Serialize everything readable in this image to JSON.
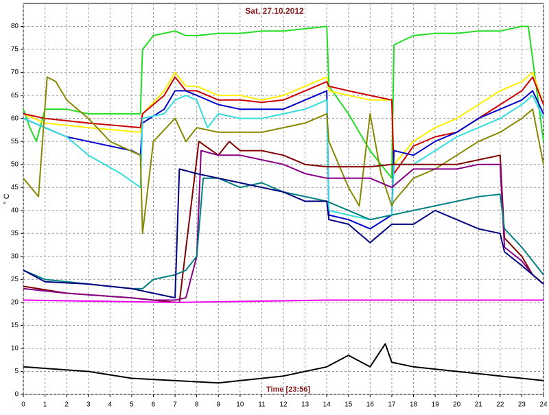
{
  "chart_data": {
    "type": "line",
    "title": "Sat, 27.10.2012",
    "y_label": "° C",
    "annotation": "Time [23:56]",
    "xlim": [
      0,
      24
    ],
    "ylim": [
      0,
      85
    ],
    "xticks": [
      0,
      1,
      2,
      3,
      4,
      5,
      6,
      7,
      8,
      9,
      10,
      11,
      12,
      13,
      14,
      15,
      16,
      17,
      18,
      19,
      20,
      21,
      22,
      23,
      24
    ],
    "yticks": [
      0,
      5,
      10,
      15,
      20,
      25,
      30,
      35,
      40,
      45,
      50,
      55,
      60,
      65,
      70,
      75,
      80
    ],
    "grid": true,
    "series": [
      {
        "color": "#22dd22",
        "x": [
          0,
          0.3,
          0.6,
          1,
          2,
          3,
          4,
          5,
          5.4,
          5.5,
          6,
          7,
          7.5,
          8,
          9,
          10,
          11,
          12,
          13,
          14,
          14.1,
          15,
          16,
          16.5,
          17,
          17.1,
          18,
          19,
          20,
          21,
          22,
          23,
          23.3,
          24
        ],
        "values": [
          62,
          58,
          55,
          62,
          62,
          61,
          61,
          61,
          61,
          75,
          78,
          79,
          78,
          78,
          78.5,
          78.5,
          79,
          79,
          79.5,
          80,
          67,
          61,
          53,
          50,
          47,
          76,
          78,
          78.5,
          78.5,
          79,
          79,
          80,
          80,
          55
        ]
      },
      {
        "color": "#ffee00",
        "x": [
          0,
          1,
          3,
          5.4,
          5.5,
          6.5,
          7,
          7.5,
          8,
          9,
          10,
          11,
          12,
          13,
          14,
          14.1,
          15,
          16,
          17,
          17.1,
          18,
          19,
          20,
          21,
          22,
          23,
          23.5,
          24
        ],
        "values": [
          61,
          59,
          58,
          57,
          61,
          66,
          70,
          67,
          67,
          65,
          65,
          64,
          65,
          67,
          69,
          66,
          65,
          64,
          64,
          50,
          55,
          58,
          60,
          63,
          66,
          68,
          70,
          63
        ]
      },
      {
        "color": "#cc0000",
        "x": [
          0,
          1,
          3,
          5.4,
          5.5,
          6.5,
          7,
          7.5,
          8,
          9,
          10,
          11,
          12,
          13,
          14,
          14.1,
          15,
          16,
          17,
          17.1,
          18,
          19,
          20,
          21,
          22,
          23,
          23.5,
          24
        ],
        "values": [
          61,
          60,
          59,
          58,
          61,
          65,
          69,
          66,
          66,
          64,
          64,
          63.5,
          64,
          66,
          68,
          67,
          66,
          65,
          64,
          48,
          54,
          56,
          57,
          60,
          63,
          66,
          69,
          63
        ]
      },
      {
        "color": "#0000cc",
        "x": [
          0,
          1,
          2,
          3,
          5,
          5.4,
          5.5,
          6.5,
          7,
          7.5,
          8,
          9,
          10,
          11,
          12,
          13,
          14,
          14.1,
          15,
          16,
          17,
          17.1,
          18,
          19,
          20,
          21,
          22,
          23,
          23.5,
          24
        ],
        "values": [
          60,
          58,
          56,
          55,
          53,
          52,
          59,
          62,
          66,
          66,
          65,
          63,
          62,
          62,
          62,
          64,
          66,
          39,
          38,
          36,
          39,
          53,
          52,
          55,
          57,
          60,
          62,
          64,
          66,
          61
        ]
      },
      {
        "color": "#33dddd",
        "x": [
          0,
          2,
          3,
          4.5,
          5.4,
          5.5,
          6.5,
          7,
          7.5,
          8,
          8.5,
          9,
          10,
          11,
          12,
          13,
          14,
          14.1,
          15,
          16,
          17,
          17.1,
          18,
          19,
          20,
          21,
          22,
          23,
          23.5,
          24
        ],
        "values": [
          60,
          56,
          52,
          48,
          45,
          60,
          61,
          64,
          65,
          64,
          58,
          61,
          60,
          60,
          61,
          62,
          64,
          40,
          39,
          38,
          39,
          50,
          50,
          53,
          56,
          58,
          60,
          63,
          65,
          60
        ]
      },
      {
        "color": "#888800",
        "x": [
          0,
          0.7,
          1.1,
          1.5,
          2,
          3,
          4,
          5.4,
          5.5,
          6,
          7,
          7.5,
          8,
          9,
          10,
          11,
          12,
          13,
          14,
          14.1,
          15,
          15.5,
          16,
          16.5,
          17,
          17.1,
          18,
          19,
          20,
          21,
          22,
          23,
          23.5,
          24
        ],
        "values": [
          47,
          43,
          69,
          68,
          64,
          60,
          55,
          52,
          35,
          55,
          60,
          55,
          58,
          57,
          57,
          57,
          58,
          59,
          61,
          55,
          45,
          41,
          61,
          48,
          41,
          42,
          47,
          49,
          52,
          55,
          57,
          60,
          62,
          50
        ]
      },
      {
        "color": "#800000",
        "x": [
          0,
          2,
          5,
          6,
          7,
          7.2,
          8.1,
          9,
          9.5,
          10,
          11,
          12,
          13,
          14,
          15,
          16,
          17,
          18,
          19,
          20,
          21,
          22,
          22.2,
          23,
          23.5,
          24
        ],
        "values": [
          23.5,
          22,
          21,
          20.5,
          20,
          20,
          55,
          52,
          55,
          53,
          53,
          52,
          50,
          49.5,
          49.5,
          49.5,
          50,
          50,
          50,
          50,
          51,
          52,
          34,
          30,
          26,
          24
        ]
      },
      {
        "color": "#880088",
        "x": [
          0,
          2,
          5,
          6,
          7,
          7.5,
          8,
          8.2,
          9,
          10,
          11,
          12,
          13,
          14,
          15,
          16,
          17,
          18,
          19,
          20,
          21,
          22,
          22.2,
          23,
          23.5,
          24
        ],
        "values": [
          23,
          22,
          21,
          20.5,
          20.5,
          21,
          30,
          53,
          52,
          52,
          51,
          50,
          48,
          47,
          47,
          47,
          45,
          49,
          49,
          49,
          50,
          50,
          32,
          29,
          26,
          24
        ]
      },
      {
        "color": "#008080",
        "x": [
          0,
          1,
          3,
          5,
          5.5,
          6,
          7,
          7.5,
          8,
          8.3,
          9,
          10,
          11,
          12,
          13,
          14,
          15,
          16,
          17,
          18,
          19,
          20,
          21,
          22,
          22.2,
          23,
          23.5,
          24
        ],
        "values": [
          27,
          25,
          24,
          23,
          23,
          25,
          26,
          27,
          30,
          47,
          47,
          45,
          46,
          44,
          43,
          42,
          40,
          38,
          39,
          40,
          41,
          42,
          43,
          43.5,
          36,
          32,
          29,
          26
        ]
      },
      {
        "color": "#000080",
        "x": [
          0,
          1,
          3,
          5,
          5.5,
          6,
          7,
          7.2,
          8,
          9,
          10,
          11,
          12,
          13,
          14,
          14.1,
          15,
          16,
          17,
          18,
          19,
          20,
          21,
          22,
          22.2,
          23,
          23.5,
          24
        ],
        "values": [
          27,
          24.5,
          24,
          23,
          22.5,
          22,
          21,
          49,
          48,
          47,
          46,
          45,
          44,
          42,
          42,
          38,
          37,
          33,
          37,
          37,
          40,
          38,
          36,
          35,
          31,
          28,
          26,
          24
        ]
      },
      {
        "color": "#ee00ee",
        "x": [
          0,
          7,
          14,
          24
        ],
        "values": [
          20.5,
          20,
          20.5,
          20.5
        ]
      },
      {
        "color": "#000000",
        "x": [
          0,
          3,
          5,
          7,
          9,
          10,
          12,
          13,
          14,
          15,
          16,
          16.7,
          17,
          18,
          19,
          20,
          21,
          22,
          23,
          24
        ],
        "values": [
          6,
          5,
          3.5,
          3,
          2.5,
          3,
          4,
          5,
          6,
          8.5,
          6,
          11,
          7,
          6,
          5.5,
          5,
          4.5,
          4,
          3.5,
          3
        ]
      }
    ]
  }
}
